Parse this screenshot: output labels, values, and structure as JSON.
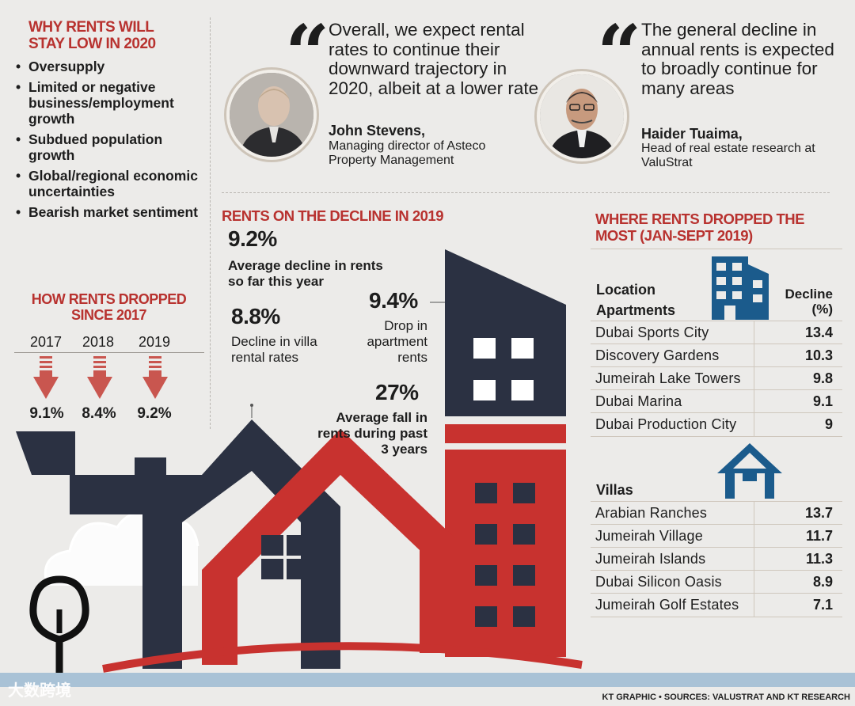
{
  "left": {
    "title": "WHY RENTS WILL STAY LOW IN 2020",
    "reasons": [
      "Oversupply",
      "Limited or negative business/employment growth",
      "Subdued population growth",
      "Global/regional economic uncertainties",
      "Bearish market sentiment"
    ],
    "history_title": "HOW RENTS DROPPED SINCE 2017",
    "history": [
      {
        "year": "2017",
        "value": "9.1%"
      },
      {
        "year": "2018",
        "value": "8.4%"
      },
      {
        "year": "2019",
        "value": "9.2%"
      }
    ]
  },
  "quotes": [
    {
      "text": "Overall, we expect rental rates to continue their downward trajectory in 2020, albeit at a lower rate",
      "name": "John Stevens,",
      "role": "Managing director of Asteco Property Management"
    },
    {
      "text": "The general decline in annual rents is expected to broadly continue for many areas",
      "name": "Haider Tuaima,",
      "role": "Head of real estate research at ValuStrat"
    }
  ],
  "decline": {
    "title": "RENTS ON THE DECLINE IN 2019",
    "stats": [
      {
        "value": "9.2%",
        "label": "Average decline in rents so far this year"
      },
      {
        "value": "8.8%",
        "label": "Decline in villa rental rates"
      },
      {
        "value": "9.4%",
        "label": "Drop in apartment rents"
      },
      {
        "value": "27%",
        "label": "Average fall in rents during past 3 years"
      }
    ]
  },
  "table": {
    "title": "WHERE RENTS DROPPED THE MOST (JAN-SEPT 2019)",
    "col_location": "Location",
    "col_decline": "Decline (%)",
    "apartments_label": "Apartments",
    "apartments": [
      {
        "location": "Dubai Sports City",
        "decline": "13.4"
      },
      {
        "location": "Discovery Gardens",
        "decline": "10.3"
      },
      {
        "location": "Jumeirah Lake Towers",
        "decline": "9.8"
      },
      {
        "location": "Dubai Marina",
        "decline": "9.1"
      },
      {
        "location": "Dubai Production City",
        "decline": "9"
      }
    ],
    "villas_label": "Villas",
    "villas": [
      {
        "location": "Arabian Ranches",
        "decline": "13.7"
      },
      {
        "location": "Jumeirah Village",
        "decline": "11.7"
      },
      {
        "location": "Jumeirah Islands",
        "decline": "11.3"
      },
      {
        "location": "Dubai Silicon Oasis",
        "decline": "8.9"
      },
      {
        "location": "Jumeirah Golf Estates",
        "decline": "7.1"
      }
    ]
  },
  "footer": {
    "source": "KT GRAPHIC • SOURCES: VALUSTRAT AND KT RESEARCH",
    "watermark": "大数跨境"
  },
  "colors": {
    "red": "#c8322f",
    "navy": "#2b3142",
    "blue": "#1b5b8c",
    "band": "#a9c2d6"
  }
}
